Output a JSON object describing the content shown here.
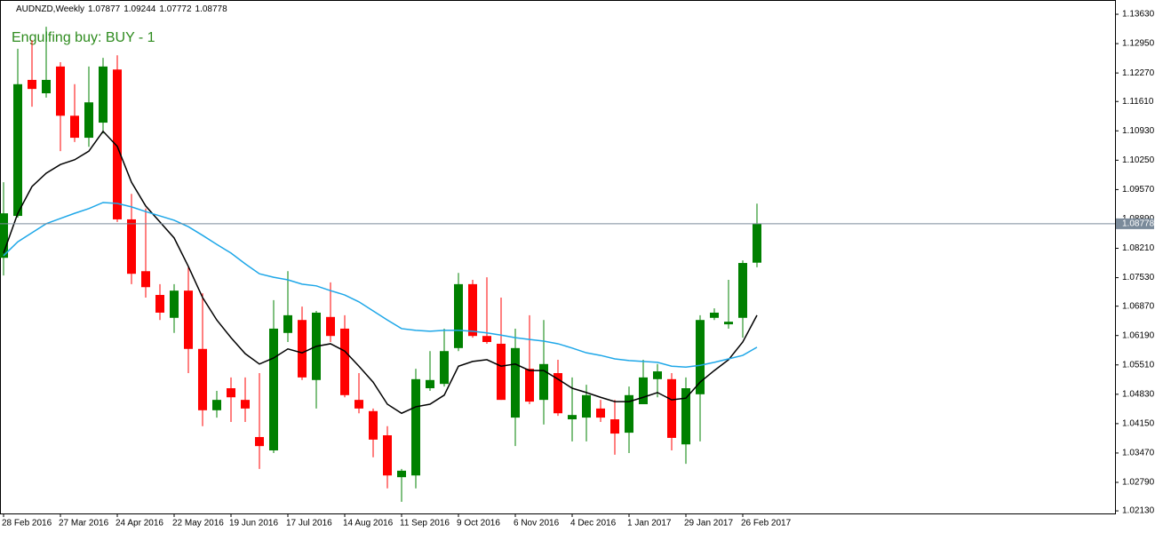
{
  "chart_data": {
    "type": "candlestick",
    "title": "AUDNZD,Weekly",
    "annotation": "Engulfing buy: BUY - 1",
    "categories": [
      "28 Feb 2016",
      null,
      null,
      null,
      "27 Mar 2016",
      null,
      null,
      null,
      "24 Apr 2016",
      null,
      null,
      null,
      "22 May 2016",
      null,
      null,
      null,
      "19 Jun 2016",
      null,
      null,
      null,
      "17 Jul 2016",
      null,
      null,
      null,
      "14 Aug 2016",
      null,
      null,
      null,
      "11 Sep 2016",
      null,
      null,
      null,
      "9 Oct 2016",
      null,
      null,
      null,
      "6 Nov 2016",
      null,
      null,
      null,
      "4 Dec 2016",
      null,
      null,
      null,
      "1 Jan 2017",
      null,
      null,
      null,
      "29 Jan 2017",
      null,
      null,
      null,
      "26 Feb 2017",
      null
    ],
    "open": [
      1.0799,
      1.0896,
      1.1211,
      1.118,
      1.1242,
      1.1128,
      1.1077,
      1.1112,
      1.1235,
      1.0888,
      1.0768,
      1.0713,
      1.066,
      1.0723,
      1.0588,
      1.0446,
      1.0497,
      1.047,
      1.0384,
      1.0353,
      1.0625,
      1.0655,
      1.0516,
      1.0662,
      1.0635,
      1.047,
      1.0444,
      1.0388,
      1.0291,
      1.0295,
      1.0497,
      1.0507,
      1.059,
      1.0738,
      1.0618,
      1.06,
      1.0429,
      1.0542,
      1.047,
      1.0532,
      1.0425,
      1.0429,
      1.045,
      1.0425,
      1.0394,
      1.046,
      1.0518,
      1.0518,
      1.0367,
      1.0483,
      1.066,
      1.0645,
      1.066,
      1.07877
    ],
    "high": [
      1.0974,
      1.1283,
      1.1303,
      1.1334,
      1.1252,
      1.1201,
      1.1242,
      1.1262,
      1.1268,
      1.0947,
      1.0913,
      1.0738,
      1.0738,
      1.0779,
      1.0717,
      1.0491,
      1.0522,
      1.0522,
      1.0532,
      1.0701,
      1.0768,
      1.0686,
      1.0676,
      1.0742,
      1.0666,
      1.0532,
      1.045,
      1.0409,
      1.031,
      1.0542,
      1.0583,
      1.0635,
      1.0764,
      1.0748,
      1.0754,
      1.0707,
      1.0635,
      1.0666,
      1.0655,
      1.0563,
      1.0522,
      1.0505,
      1.047,
      1.047,
      1.0501,
      1.0563,
      1.0553,
      1.0532,
      1.0522,
      1.0666,
      1.0682,
      1.0748,
      1.0793,
      1.09244
    ],
    "low": [
      1.0758,
      1.0892,
      1.1149,
      1.117,
      1.1046,
      1.1067,
      1.1056,
      1.1087,
      1.0882,
      1.0738,
      1.0707,
      1.0655,
      1.0625,
      1.0532,
      1.0409,
      1.0429,
      1.0419,
      1.0419,
      1.031,
      1.0347,
      1.0604,
      1.0516,
      1.045,
      1.0604,
      1.0476,
      1.0439,
      1.0337,
      1.0265,
      1.0234,
      1.0265,
      1.0491,
      1.0501,
      1.0583,
      1.0614,
      1.06,
      1.047,
      1.0363,
      1.046,
      1.0413,
      1.0433,
      1.0374,
      1.0374,
      1.0419,
      1.0343,
      1.0347,
      1.046,
      1.0476,
      1.0353,
      1.0322,
      1.0374,
      1.0655,
      1.0635,
      1.0614,
      1.07772
    ],
    "close": [
      1.0902,
      1.1201,
      1.119,
      1.1211,
      1.1128,
      1.1077,
      1.1159,
      1.1242,
      1.0888,
      1.0762,
      1.0731,
      1.0672,
      1.0723,
      1.0588,
      1.0446,
      1.047,
      1.0476,
      1.045,
      1.0363,
      1.0635,
      1.0666,
      1.0522,
      1.0672,
      1.0618,
      1.0481,
      1.045,
      1.0378,
      1.0295,
      1.0306,
      1.0518,
      1.0516,
      1.0583,
      1.0738,
      1.0618,
      1.0604,
      1.047,
      1.059,
      1.0466,
      1.0553,
      1.0439,
      1.0435,
      1.0481,
      1.0429,
      1.0392,
      1.0481,
      1.0522,
      1.0536,
      1.0382,
      1.0497,
      1.0655,
      1.0672,
      1.0651,
      1.0787,
      1.08778
    ],
    "up_color": "#008000",
    "down_color": "#ff0000",
    "lines": [
      {
        "color": "#000000",
        "values": [
          1.081,
          1.0902,
          1.0964,
          1.0995,
          1.1015,
          1.1026,
          1.1046,
          1.1092,
          1.1057,
          1.0974,
          1.0919,
          1.0882,
          1.0845,
          1.0779,
          1.0707,
          1.0655,
          1.0614,
          1.0577,
          1.0553,
          1.0567,
          1.0588,
          1.0579,
          1.0594,
          1.06,
          1.0583,
          1.0548,
          1.0511,
          1.046,
          1.0439,
          1.0454,
          1.046,
          1.0481,
          1.0548,
          1.0559,
          1.0563,
          1.0548,
          1.0553,
          1.0538,
          1.0538,
          1.0518,
          1.0497,
          1.0487,
          1.0476,
          1.0466,
          1.0466,
          1.0476,
          1.0487,
          1.047,
          1.0474,
          1.0511,
          1.0538,
          1.0563,
          1.0604,
          1.0666
        ]
      },
      {
        "color": "#1ea7e8",
        "values": [
          1.0804,
          1.0836,
          1.0857,
          1.0878,
          1.089,
          1.0902,
          1.0913,
          1.0927,
          1.0925,
          1.0917,
          1.0906,
          1.0896,
          1.0886,
          1.0871,
          1.0851,
          1.083,
          1.081,
          1.0785,
          1.0762,
          1.0754,
          1.0748,
          1.0738,
          1.0734,
          1.0723,
          1.0713,
          1.0697,
          1.0676,
          1.0655,
          1.0635,
          1.0631,
          1.0629,
          1.0631,
          1.0631,
          1.0629,
          1.0625,
          1.062,
          1.0614,
          1.061,
          1.0606,
          1.06,
          1.059,
          1.0579,
          1.0573,
          1.0565,
          1.0561,
          1.0559,
          1.0557,
          1.0548,
          1.0546,
          1.055,
          1.0557,
          1.0565,
          1.0573,
          1.0592
        ]
      }
    ],
    "ylim": [
      1.0207,
      1.1396
    ],
    "yticks": [
      {
        "value": 1.1363,
        "label": "1.13630"
      },
      {
        "value": 1.1295,
        "label": "1.12950"
      },
      {
        "value": 1.1227,
        "label": "1.12270"
      },
      {
        "value": 1.1161,
        "label": "1.11610"
      },
      {
        "value": 1.1093,
        "label": "1.10930"
      },
      {
        "value": 1.1025,
        "label": "1.10250"
      },
      {
        "value": 1.0957,
        "label": "1.09570"
      },
      {
        "value": 1.0889,
        "label": "1.08890"
      },
      {
        "value": 1.0821,
        "label": "1.08210"
      },
      {
        "value": 1.0753,
        "label": "1.07530"
      },
      {
        "value": 1.0687,
        "label": "1.06870"
      },
      {
        "value": 1.0619,
        "label": "1.06190"
      },
      {
        "value": 1.0551,
        "label": "1.05510"
      },
      {
        "value": 1.0483,
        "label": "1.04830"
      },
      {
        "value": 1.0415,
        "label": "1.04150"
      },
      {
        "value": 1.0347,
        "label": "1.03470"
      },
      {
        "value": 1.0279,
        "label": "1.02790"
      },
      {
        "value": 1.0213,
        "label": "1.02130"
      }
    ]
  }
}
